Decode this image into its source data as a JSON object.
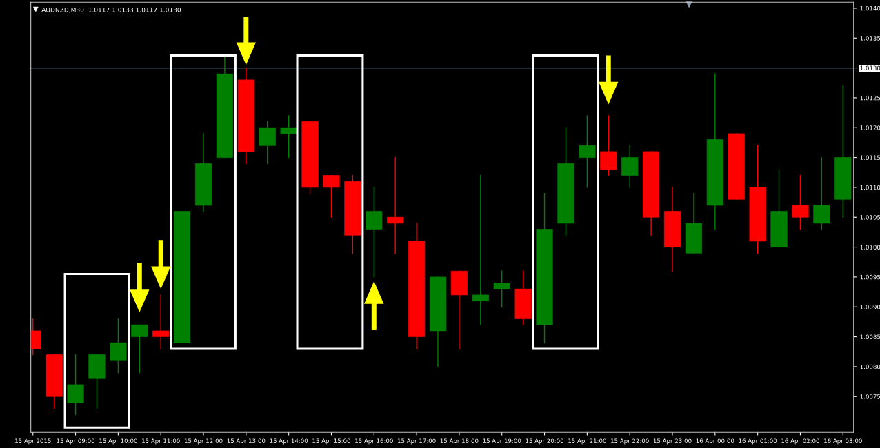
{
  "chart_data": {
    "type": "candlestick",
    "title": "AUDNZD,M30  1.0117 1.0133 1.0117 1.0130",
    "categories": [
      "15 Apr 2015",
      null,
      "15 Apr 09:00",
      null,
      "15 Apr 10:00",
      null,
      "15 Apr 11:00",
      null,
      "15 Apr 12:00",
      null,
      "15 Apr 13:00",
      null,
      "15 Apr 14:00",
      null,
      "15 Apr 15:00",
      null,
      "15 Apr 16:00",
      null,
      "15 Apr 17:00",
      null,
      "15 Apr 18:00",
      null,
      "15 Apr 19:00",
      null,
      "15 Apr 20:00",
      null,
      "15 Apr 21:00",
      null,
      "15 Apr 22:00",
      null,
      "15 Apr 23:00",
      null,
      "16 Apr 00:00",
      null,
      "16 Apr 01:00",
      null,
      "16 Apr 02:00",
      null,
      "16 Apr 03:00"
    ],
    "ohlc": [
      [
        1.0086,
        1.0088,
        1.0082,
        1.0083
      ],
      [
        1.0082,
        1.0082,
        1.0073,
        1.0075
      ],
      [
        1.0074,
        1.0082,
        1.0072,
        1.0077
      ],
      [
        1.0078,
        1.0082,
        1.0073,
        1.0082
      ],
      [
        1.0081,
        1.0088,
        1.0079,
        1.0084
      ],
      [
        1.0085,
        1.0087,
        1.0079,
        1.0087
      ],
      [
        1.0086,
        1.0092,
        1.0083,
        1.0085
      ],
      [
        1.0084,
        1.0106,
        1.0084,
        1.0106
      ],
      [
        1.0107,
        1.0119,
        1.0106,
        1.0114
      ],
      [
        1.0115,
        1.0132,
        1.0115,
        1.0129
      ],
      [
        1.0128,
        1.013,
        1.0114,
        1.0116
      ],
      [
        1.0117,
        1.0121,
        1.0114,
        1.012
      ],
      [
        1.0119,
        1.0122,
        1.0115,
        1.012
      ],
      [
        1.0121,
        1.0121,
        1.0109,
        1.011
      ],
      [
        1.0112,
        1.0112,
        1.0105,
        1.011
      ],
      [
        1.0111,
        1.0112,
        1.0099,
        1.0102
      ],
      [
        1.0103,
        1.011,
        1.0095,
        1.0106
      ],
      [
        1.0105,
        1.0115,
        1.0099,
        1.0104
      ],
      [
        1.0101,
        1.0104,
        1.0083,
        1.0085
      ],
      [
        1.0086,
        1.0095,
        1.008,
        1.0095
      ],
      [
        1.0096,
        1.0096,
        1.0083,
        1.0092
      ],
      [
        1.0091,
        1.0112,
        1.0087,
        1.0092
      ],
      [
        1.0093,
        1.0096,
        1.009,
        1.0094
      ],
      [
        1.0093,
        1.0096,
        1.0087,
        1.0088
      ],
      [
        1.0087,
        1.0109,
        1.0084,
        1.0103
      ],
      [
        1.0104,
        1.012,
        1.0102,
        1.0114
      ],
      [
        1.0115,
        1.0122,
        1.011,
        1.0117
      ],
      [
        1.0116,
        1.0122,
        1.0112,
        1.0113
      ],
      [
        1.0112,
        1.0117,
        1.011,
        1.0115
      ],
      [
        1.0116,
        1.0116,
        1.0102,
        1.0105
      ],
      [
        1.0106,
        1.011,
        1.0096,
        1.01
      ],
      [
        1.0099,
        1.0109,
        1.0099,
        1.0104
      ],
      [
        1.0107,
        1.0129,
        1.0103,
        1.0118
      ],
      [
        1.0119,
        1.0119,
        1.0108,
        1.0108
      ],
      [
        1.011,
        1.0117,
        1.0099,
        1.0101
      ],
      [
        1.01,
        1.0113,
        1.01,
        1.0106
      ],
      [
        1.0107,
        1.0112,
        1.0103,
        1.0105
      ],
      [
        1.0104,
        1.0115,
        1.0103,
        1.0107
      ],
      [
        1.0108,
        1.0127,
        1.0105,
        1.0115
      ]
    ],
    "colors": [
      "#ff0000",
      "#ff0000",
      "#008000",
      "#008000",
      "#008000",
      "#008000",
      "#ff0000",
      "#008000",
      "#008000",
      "#008000",
      "#ff0000",
      "#008000",
      "#008000",
      "#ff0000",
      "#ff0000",
      "#ff0000",
      "#008000",
      "#ff0000",
      "#ff0000",
      "#008000",
      "#ff0000",
      "#008000",
      "#008000",
      "#ff0000",
      "#008000",
      "#008000",
      "#008000",
      "#ff0000",
      "#008000",
      "#ff0000",
      "#ff0000",
      "#008000",
      "#008000",
      "#ff0000",
      "#ff0000",
      "#008000",
      "#ff0000",
      "#008000",
      "#008000"
    ],
    "ylim": [
      1.0069,
      1.0141
    ],
    "yticks": [
      {
        "value": 1.0075,
        "label": "1.0075"
      },
      {
        "value": 1.008,
        "label": "1.0080"
      },
      {
        "value": 1.0085,
        "label": "1.0085"
      },
      {
        "value": 1.009,
        "label": "1.0090"
      },
      {
        "value": 1.0095,
        "label": "1.0095"
      },
      {
        "value": 1.01,
        "label": "1.0100"
      },
      {
        "value": 1.0105,
        "label": "1.0105"
      },
      {
        "value": 1.011,
        "label": "1.0110"
      },
      {
        "value": 1.0115,
        "label": "1.0115"
      },
      {
        "value": 1.012,
        "label": "1.0120"
      },
      {
        "value": 1.0125,
        "label": "1.0125"
      },
      {
        "value": 1.013,
        "label": "1.0130"
      },
      {
        "value": 1.0135,
        "label": "1.0135"
      },
      {
        "value": 1.014,
        "label": "1.0140"
      }
    ],
    "ref_lines": [
      {
        "axis": "y",
        "value": 1.013,
        "color": "#8a9aa9"
      }
    ],
    "grid": false
  }
}
